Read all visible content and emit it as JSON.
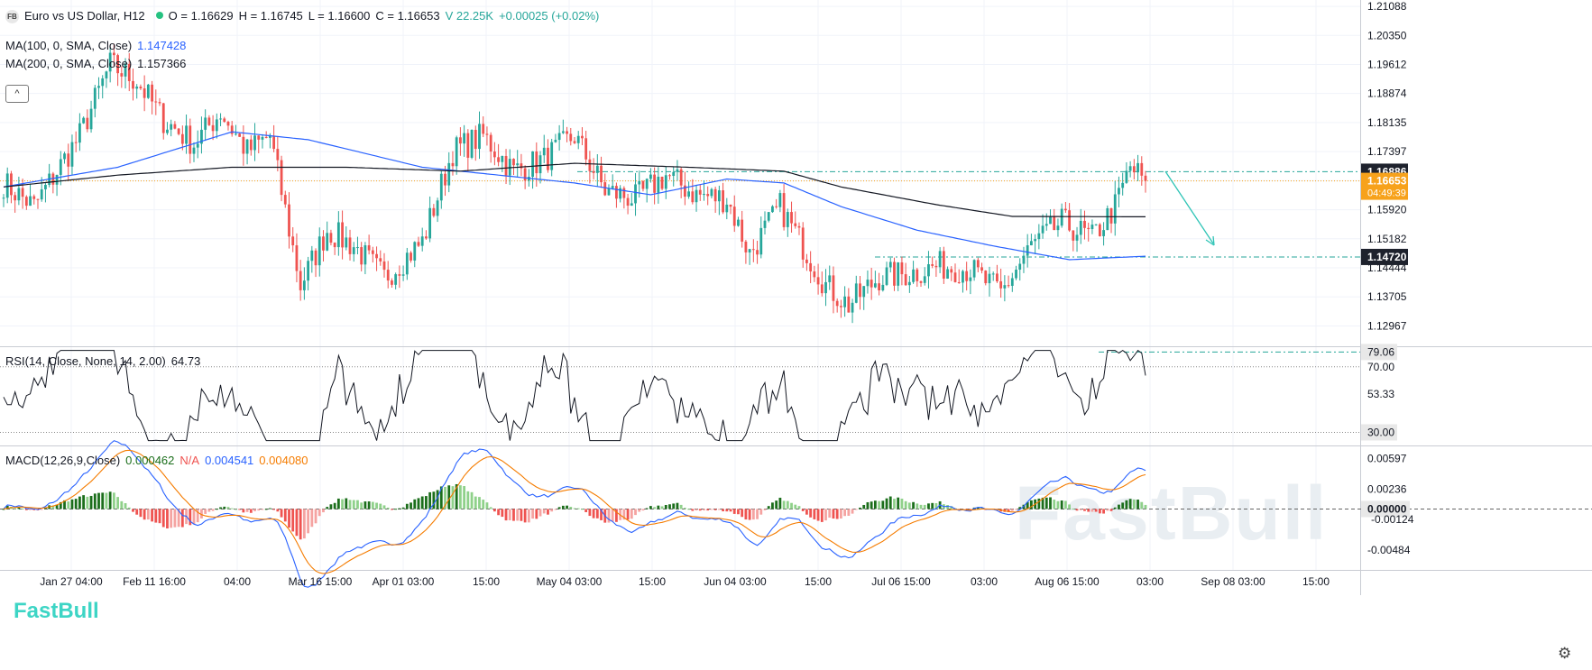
{
  "header": {
    "logo_text": "FB",
    "symbol": "Euro vs US Dollar, H12",
    "open": "O = 1.16629",
    "high": "H = 1.16745",
    "low": "L = 1.16600",
    "close": "C = 1.16653",
    "volume": "V 22.25K",
    "change": "+0.00025 (+0.02%)"
  },
  "ma100": {
    "label": "MA(100, 0, SMA, Close)",
    "value": "1.147428",
    "color": "#2962ff"
  },
  "ma200": {
    "label": "MA(200, 0, SMA, Close)",
    "value": "1.157366",
    "color": "#131722"
  },
  "rsi": {
    "label": "RSI(14, Close, None, 14, 2.00)",
    "value": "64.73"
  },
  "macd": {
    "label": "MACD(12,26,9,Close)",
    "v1": "0.000462",
    "v2": "N/A",
    "v3": "0.004541",
    "v4": "0.004080"
  },
  "collapse_icon": "chevron-up-icon",
  "settings_icon": "gear-icon",
  "brand_text": "FastBull",
  "watermark_text": "FastBull",
  "colors": {
    "up": "#26a69a",
    "down": "#ef5350",
    "ma100": "#2962ff",
    "ma200": "#131722",
    "signal": "#f57c00",
    "price_tag": "#f7a21b",
    "level": "#26a69a"
  },
  "chart_data": [
    {
      "type": "candlestick",
      "title": "Euro vs US Dollar, H12",
      "x_ticks": [
        "Jan 27 04:00",
        "Feb 11 16:00",
        "04:00",
        "Mar 16 15:00",
        "Apr 01 03:00",
        "15:00",
        "May 04 03:00",
        "15:00",
        "Jun 04 03:00",
        "15:00",
        "Jul 06 15:00",
        "03:00",
        "Aug 06 15:00",
        "03:00",
        "Sep 08 03:00",
        "15:00"
      ],
      "y_ticks": [
        "1.21088",
        "1.20350",
        "1.19612",
        "1.18874",
        "1.18135",
        "1.17397",
        "1.16659",
        "1.15920",
        "1.15182",
        "1.14444",
        "1.13705",
        "1.12967"
      ],
      "ylim": [
        1.1245,
        1.2125
      ],
      "last_price": "1.16653",
      "countdown": "04:49:39",
      "level_tags": [
        "1.16886",
        "1.14720"
      ],
      "anchor_closes": [
        [
          0,
          1.166
        ],
        [
          8,
          1.16
        ],
        [
          20,
          1.178
        ],
        [
          28,
          1.196
        ],
        [
          35,
          1.192
        ],
        [
          42,
          1.182
        ],
        [
          50,
          1.176
        ],
        [
          57,
          1.184
        ],
        [
          64,
          1.174
        ],
        [
          70,
          1.178
        ],
        [
          78,
          1.14
        ],
        [
          85,
          1.154
        ],
        [
          92,
          1.15
        ],
        [
          100,
          1.142
        ],
        [
          110,
          1.151
        ],
        [
          118,
          1.174
        ],
        [
          126,
          1.178
        ],
        [
          134,
          1.169
        ],
        [
          142,
          1.172
        ],
        [
          150,
          1.178
        ],
        [
          158,
          1.164
        ],
        [
          166,
          1.162
        ],
        [
          174,
          1.168
        ],
        [
          182,
          1.163
        ],
        [
          190,
          1.162
        ],
        [
          196,
          1.148
        ],
        [
          204,
          1.16
        ],
        [
          210,
          1.15
        ],
        [
          216,
          1.14
        ],
        [
          222,
          1.135
        ],
        [
          230,
          1.142
        ],
        [
          238,
          1.143
        ],
        [
          246,
          1.145
        ],
        [
          254,
          1.144
        ],
        [
          262,
          1.138
        ],
        [
          270,
          1.15
        ],
        [
          278,
          1.156
        ],
        [
          286,
          1.152
        ],
        [
          292,
          1.16
        ],
        [
          296,
          1.17
        ],
        [
          300,
          1.1665
        ]
      ],
      "ma100": [
        [
          0,
          1.165
        ],
        [
          30,
          1.17
        ],
        [
          60,
          1.179
        ],
        [
          80,
          1.177
        ],
        [
          110,
          1.17
        ],
        [
          130,
          1.168
        ],
        [
          150,
          1.166
        ],
        [
          170,
          1.163
        ],
        [
          190,
          1.167
        ],
        [
          205,
          1.166
        ],
        [
          220,
          1.16
        ],
        [
          240,
          1.154
        ],
        [
          260,
          1.15
        ],
        [
          280,
          1.1465
        ],
        [
          300,
          1.1474
        ]
      ],
      "ma200": [
        [
          0,
          1.165
        ],
        [
          30,
          1.168
        ],
        [
          60,
          1.17
        ],
        [
          90,
          1.17
        ],
        [
          120,
          1.169
        ],
        [
          150,
          1.171
        ],
        [
          180,
          1.17
        ],
        [
          205,
          1.169
        ],
        [
          220,
          1.165
        ],
        [
          245,
          1.1605
        ],
        [
          265,
          1.1575
        ],
        [
          300,
          1.1574
        ]
      ]
    },
    {
      "type": "line",
      "title": "RSI(14, Close, None, 14, 2.00)",
      "y_ticks": [
        "79.06",
        "70.00",
        "53.33",
        "30.00"
      ],
      "ylim": [
        22,
        82
      ],
      "levels": [
        70,
        30
      ],
      "last": 64.73
    },
    {
      "type": "bar",
      "title": "MACD(12,26,9,Close)",
      "y_ticks": [
        "0.00597",
        "0.00236",
        "0.00000",
        "-0.00124",
        "-0.00484"
      ],
      "ylim": [
        -0.0072,
        0.0074
      ],
      "last": {
        "histogram": 0.000462,
        "macd": 0.004541,
        "signal": 0.00408
      }
    }
  ]
}
